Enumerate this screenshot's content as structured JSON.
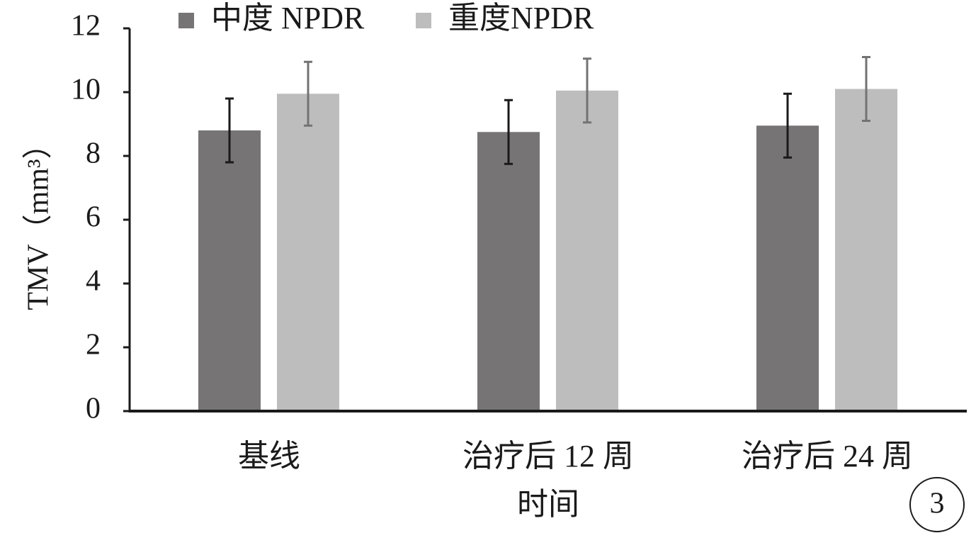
{
  "chart_data": {
    "type": "bar",
    "y_label": "TMV（mm³）",
    "x_label": "时间",
    "annotation": "3",
    "categories": [
      "基线",
      "治疗后 12 周",
      "治疗后 24 周"
    ],
    "series": [
      {
        "name": "中度 NPDR",
        "color": "#767474",
        "error_color": "#1a1a1a",
        "values": [
          8.8,
          8.75,
          8.95
        ],
        "errors": [
          1.0,
          1.0,
          1.0
        ]
      },
      {
        "name": "重度NPDR",
        "color": "#bdbdbd",
        "error_color": "#737373",
        "values": [
          9.95,
          10.05,
          10.1
        ],
        "errors": [
          1.0,
          1.0,
          1.0
        ]
      }
    ],
    "ylim": [
      0,
      12
    ],
    "yticks": [
      0,
      2,
      4,
      6,
      8,
      10,
      12
    ]
  }
}
